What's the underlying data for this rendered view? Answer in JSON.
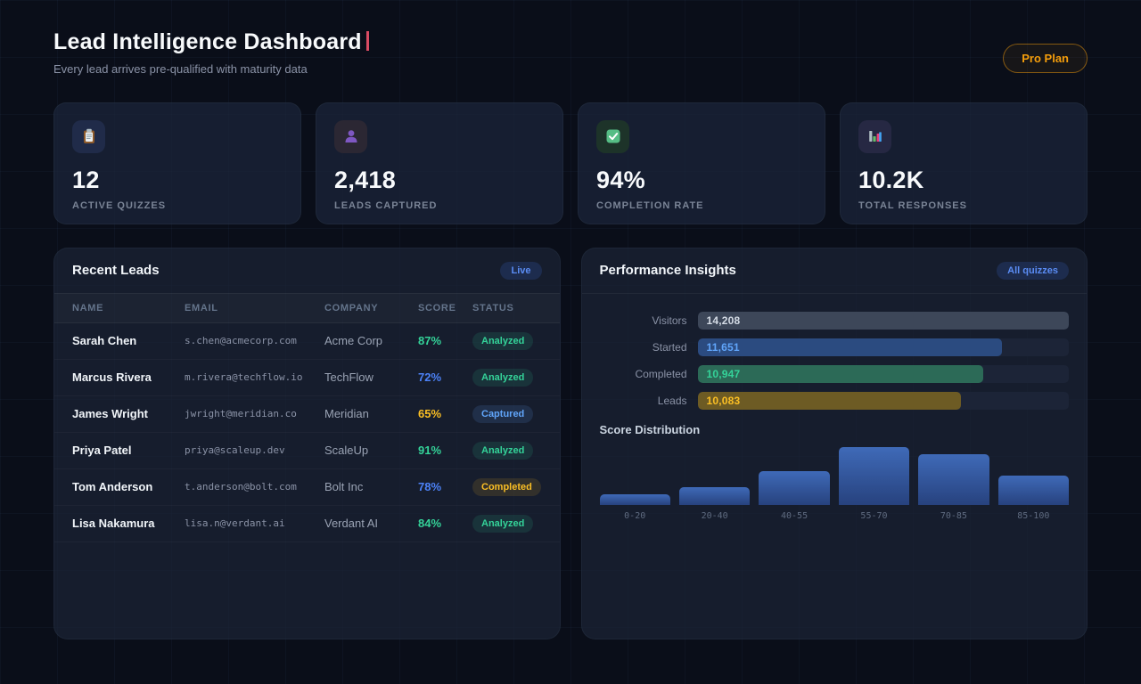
{
  "header": {
    "title": "Lead Intelligence Dashboard",
    "subtitle": "Every lead arrives pre-qualified with maturity data",
    "plan_badge": "Pro Plan"
  },
  "stats": [
    {
      "icon": "clipboard-icon",
      "value": "12",
      "label": "ACTIVE QUIZZES"
    },
    {
      "icon": "person-icon",
      "value": "2,418",
      "label": "LEADS CAPTURED"
    },
    {
      "icon": "check-icon",
      "value": "94%",
      "label": "COMPLETION RATE"
    },
    {
      "icon": "bar-chart-icon",
      "value": "10.2K",
      "label": "TOTAL RESPONSES"
    }
  ],
  "recent_leads": {
    "title": "Recent Leads",
    "badge": "Live",
    "columns": [
      "NAME",
      "EMAIL",
      "COMPANY",
      "SCORE",
      "STATUS"
    ],
    "rows": [
      {
        "name": "Sarah Chen",
        "email": "s.chen@acmecorp.com",
        "company": "Acme Corp",
        "score": "87%",
        "score_color": "#34d399",
        "status": "Analyzed",
        "status_variant": "analyzed"
      },
      {
        "name": "Marcus Rivera",
        "email": "m.rivera@techflow.io",
        "company": "TechFlow",
        "score": "72%",
        "score_color": "#4c82f7",
        "status": "Analyzed",
        "status_variant": "analyzed"
      },
      {
        "name": "James Wright",
        "email": "jwright@meridian.co",
        "company": "Meridian",
        "score": "65%",
        "score_color": "#fbbf24",
        "status": "Captured",
        "status_variant": "captured"
      },
      {
        "name": "Priya Patel",
        "email": "priya@scaleup.dev",
        "company": "ScaleUp",
        "score": "91%",
        "score_color": "#34d399",
        "status": "Analyzed",
        "status_variant": "analyzed"
      },
      {
        "name": "Tom Anderson",
        "email": "t.anderson@bolt.com",
        "company": "Bolt Inc",
        "score": "78%",
        "score_color": "#4c82f7",
        "status": "Completed",
        "status_variant": "completed"
      },
      {
        "name": "Lisa Nakamura",
        "email": "lisa.n@verdant.ai",
        "company": "Verdant AI",
        "score": "84%",
        "score_color": "#34d399",
        "status": "Analyzed",
        "status_variant": "analyzed"
      }
    ]
  },
  "insights": {
    "title": "Performance Insights",
    "badge": "All quizzes",
    "funnel": [
      {
        "label": "Visitors",
        "value": "14,208",
        "pct": 100,
        "fill": "#3d4759",
        "text_color": "#d3dae4"
      },
      {
        "label": "Started",
        "value": "11,651",
        "pct": 82,
        "fill": "#2b4b80",
        "text_color": "#60a5fa"
      },
      {
        "label": "Completed",
        "value": "10,947",
        "pct": 77,
        "fill": "#2c6a57",
        "text_color": "#34d399"
      },
      {
        "label": "Leads",
        "value": "10,083",
        "pct": 71,
        "fill": "#6d5b24",
        "text_color": "#fbbf24"
      }
    ],
    "distribution_title": "Score Distribution"
  },
  "chart_data": [
    {
      "type": "bar",
      "title": "Score Distribution",
      "categories": [
        "0-20",
        "20-40",
        "40-55",
        "55-70",
        "70-85",
        "85-100"
      ],
      "values": [
        12,
        20,
        38,
        65,
        57,
        33
      ],
      "xlabel": "",
      "ylabel": "",
      "ylim": [
        0,
        70
      ],
      "note": "values are relative bar heights in px; no y-axis or data labels shown",
      "grid": false,
      "legend": false,
      "bar_color_top": "#3f6ab8",
      "bar_color_bottom": "#27427e"
    },
    {
      "type": "bar",
      "title": "Performance funnel",
      "orientation": "horizontal",
      "categories": [
        "Visitors",
        "Started",
        "Completed",
        "Leads"
      ],
      "values": [
        14208,
        11651,
        10947,
        10083
      ],
      "bar_colors": [
        "#3d4759",
        "#2b4b80",
        "#2c6a57",
        "#6d5b24"
      ],
      "value_label_colors": [
        "#d3dae4",
        "#60a5fa",
        "#34d399",
        "#fbbf24"
      ]
    }
  ],
  "colors": {
    "page_bg": "#0a0e19",
    "panel_bg": "#1b2336",
    "accent_amber": "#f59e0b",
    "accent_blue": "#5b8df5",
    "accent_green": "#34d399",
    "title_caret": "#d94b63"
  }
}
